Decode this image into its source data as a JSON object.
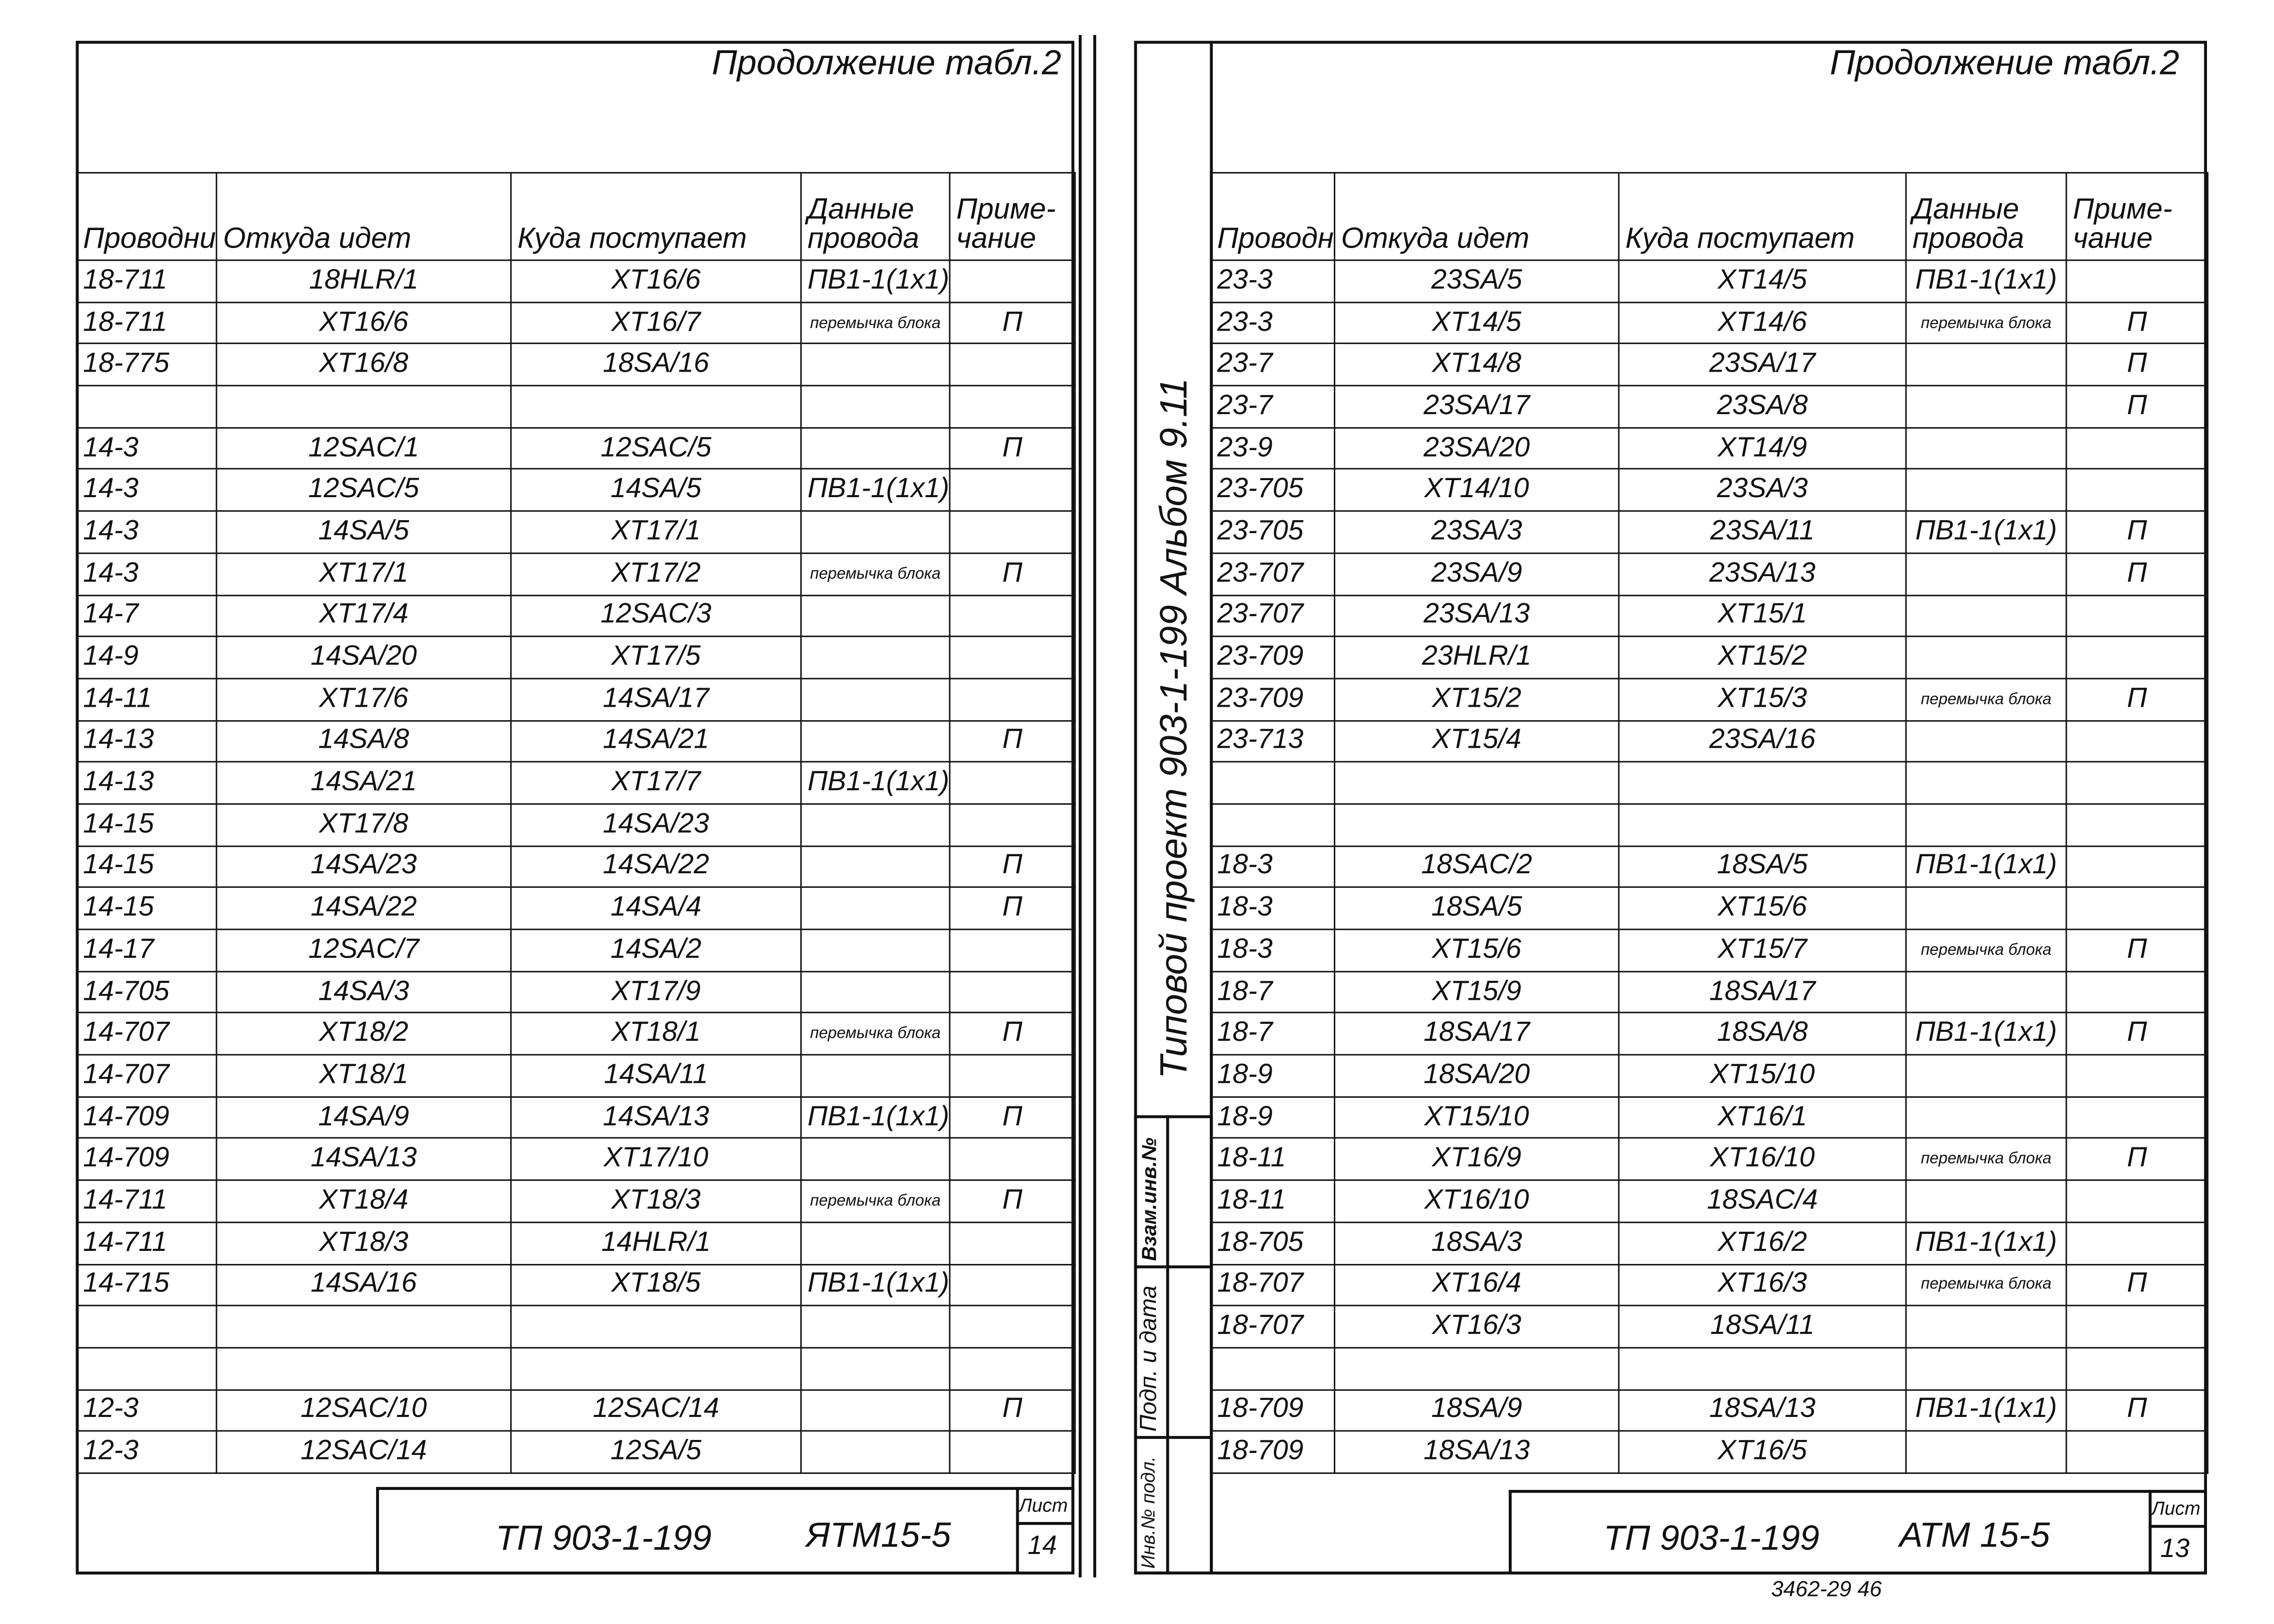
{
  "pages": [
    {
      "continuation": "Продолжение табл.2",
      "headers": [
        "Проводник",
        "Откуда идет",
        "Куда поступает",
        "Данные провода",
        "Приме-чание"
      ],
      "rows": [
        [
          "18-711",
          "18HLR/1",
          "XT16/6",
          "ПВ1-1(1x1)",
          ""
        ],
        [
          "18-711",
          "XT16/6",
          "XT16/7",
          "перемычка блока",
          "П"
        ],
        [
          "18-775",
          "XT16/8",
          "18SA/16",
          "",
          ""
        ],
        [
          "",
          "",
          "",
          "",
          ""
        ],
        [
          "14-3",
          "12SAC/1",
          "12SAC/5",
          "",
          "П"
        ],
        [
          "14-3",
          "12SAC/5",
          "14SA/5",
          "ПВ1-1(1x1)",
          ""
        ],
        [
          "14-3",
          "14SA/5",
          "XT17/1",
          "",
          ""
        ],
        [
          "14-3",
          "XT17/1",
          "XT17/2",
          "перемычка блока",
          "П"
        ],
        [
          "14-7",
          "XT17/4",
          "12SAC/3",
          "",
          ""
        ],
        [
          "14-9",
          "14SA/20",
          "XT17/5",
          "",
          ""
        ],
        [
          "14-11",
          "XT17/6",
          "14SA/17",
          "",
          ""
        ],
        [
          "14-13",
          "14SA/8",
          "14SA/21",
          "",
          "П"
        ],
        [
          "14-13",
          "14SA/21",
          "XT17/7",
          "ПВ1-1(1x1)",
          ""
        ],
        [
          "14-15",
          "XT17/8",
          "14SA/23",
          "",
          ""
        ],
        [
          "14-15",
          "14SA/23",
          "14SA/22",
          "",
          "П"
        ],
        [
          "14-15",
          "14SA/22",
          "14SA/4",
          "",
          "П"
        ],
        [
          "14-17",
          "12SAC/7",
          "14SA/2",
          "",
          ""
        ],
        [
          "14-705",
          "14SA/3",
          "XT17/9",
          "",
          ""
        ],
        [
          "14-707",
          "XT18/2",
          "XT18/1",
          "перемычка блока",
          "П"
        ],
        [
          "14-707",
          "XT18/1",
          "14SA/11",
          "",
          ""
        ],
        [
          "14-709",
          "14SA/9",
          "14SA/13",
          "ПВ1-1(1x1)",
          "П"
        ],
        [
          "14-709",
          "14SA/13",
          "XT17/10",
          "",
          ""
        ],
        [
          "14-711",
          "XT18/4",
          "XT18/3",
          "перемычка блока",
          "П"
        ],
        [
          "14-711",
          "XT18/3",
          "14HLR/1",
          "",
          ""
        ],
        [
          "14-715",
          "14SA/16",
          "XT18/5",
          "ПВ1-1(1x1)",
          ""
        ],
        [
          "",
          "",
          "",
          "",
          ""
        ],
        [
          "",
          "",
          "",
          "",
          ""
        ],
        [
          "12-3",
          "12SAC/10",
          "12SAC/14",
          "",
          "П"
        ],
        [
          "12-3",
          "12SAC/14",
          "12SA/5",
          "",
          ""
        ]
      ],
      "stamp": {
        "code": "ТП 903-1-199",
        "doc": "ЯТМ15-5",
        "sheet_label": "Лист",
        "sheet": "14"
      }
    },
    {
      "continuation": "Продолжение табл.2",
      "headers": [
        "Проводник",
        "Откуда идет",
        "Куда поступает",
        "Данные провода",
        "Приме-чание"
      ],
      "rows": [
        [
          "23-3",
          "23SA/5",
          "XT14/5",
          "ПВ1-1(1x1)",
          ""
        ],
        [
          "23-3",
          "XT14/5",
          "XT14/6",
          "перемычка блока",
          "П"
        ],
        [
          "23-7",
          "XT14/8",
          "23SA/17",
          "",
          "П"
        ],
        [
          "23-7",
          "23SA/17",
          "23SA/8",
          "",
          "П"
        ],
        [
          "23-9",
          "23SA/20",
          "XT14/9",
          "",
          ""
        ],
        [
          "23-705",
          "XT14/10",
          "23SA/3",
          "",
          ""
        ],
        [
          "23-705",
          "23SA/3",
          "23SA/11",
          "ПВ1-1(1x1)",
          "П"
        ],
        [
          "23-707",
          "23SA/9",
          "23SA/13",
          "",
          "П"
        ],
        [
          "23-707",
          "23SA/13",
          "XT15/1",
          "",
          ""
        ],
        [
          "23-709",
          "23HLR/1",
          "XT15/2",
          "",
          ""
        ],
        [
          "23-709",
          "XT15/2",
          "XT15/3",
          "перемычка блока",
          "П"
        ],
        [
          "23-713",
          "XT15/4",
          "23SA/16",
          "",
          ""
        ],
        [
          "",
          "",
          "",
          "",
          ""
        ],
        [
          "",
          "",
          "",
          "",
          ""
        ],
        [
          "18-3",
          "18SAC/2",
          "18SA/5",
          "ПВ1-1(1x1)",
          ""
        ],
        [
          "18-3",
          "18SA/5",
          "XT15/6",
          "",
          ""
        ],
        [
          "18-3",
          "XT15/6",
          "XT15/7",
          "перемычка блока",
          "П"
        ],
        [
          "18-7",
          "XT15/9",
          "18SA/17",
          "",
          ""
        ],
        [
          "18-7",
          "18SA/17",
          "18SA/8",
          "ПВ1-1(1x1)",
          "П"
        ],
        [
          "18-9",
          "18SA/20",
          "XT15/10",
          "",
          ""
        ],
        [
          "18-9",
          "XT15/10",
          "XT16/1",
          "",
          ""
        ],
        [
          "18-11",
          "XT16/9",
          "XT16/10",
          "перемычка блока",
          "П"
        ],
        [
          "18-11",
          "XT16/10",
          "18SAC/4",
          "",
          ""
        ],
        [
          "18-705",
          "18SA/3",
          "XT16/2",
          "ПВ1-1(1x1)",
          ""
        ],
        [
          "18-707",
          "XT16/4",
          "XT16/3",
          "перемычка блока",
          "П"
        ],
        [
          "18-707",
          "XT16/3",
          "18SA/11",
          "",
          ""
        ],
        [
          "",
          "",
          "",
          "",
          ""
        ],
        [
          "18-709",
          "18SA/9",
          "18SA/13",
          "ПВ1-1(1x1)",
          "П"
        ],
        [
          "18-709",
          "18SA/13",
          "XT16/5",
          "",
          ""
        ]
      ],
      "stamp": {
        "code": "ТП 903-1-199",
        "doc": "АТМ 15-5",
        "sheet_label": "Лист",
        "sheet": "13"
      }
    }
  ],
  "side_stamp": {
    "album_title": "Типовой проект 903-1-199 Альбом 9.11",
    "fields": [
      "Взам.инв.№",
      "Подп. и дата",
      "Инв.№ подл."
    ]
  },
  "footer_note": "3462-29 46"
}
